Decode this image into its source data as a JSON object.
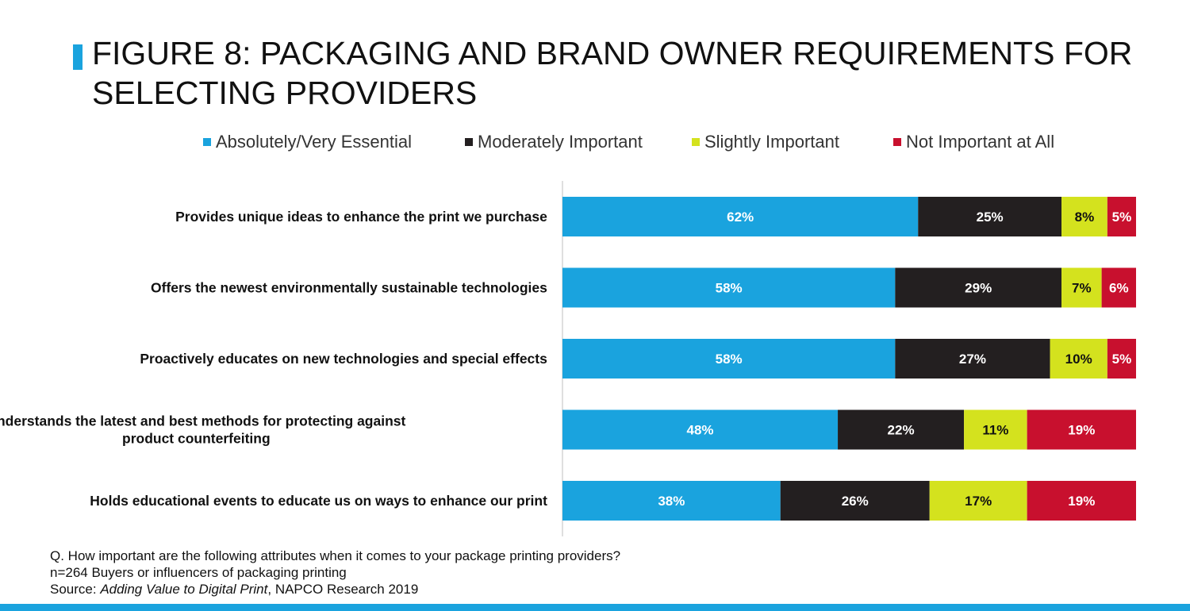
{
  "figure": {
    "title": "FIGURE 8: PACKAGING AND BRAND OWNER REQUIREMENTS FOR SELECTING PROVIDERS"
  },
  "notes": {
    "question": "Q. How important are the following attributes when it comes to your package printing providers?",
    "sample": "n=264 Buyers or influencers of packaging printing",
    "source_prefix": "Source: ",
    "source_title": "Adding Value to Digital Print",
    "source_suffix": ", NAPCO Research 2019"
  },
  "colors": {
    "accent": "#1aa3de",
    "series": [
      "#1aa3de",
      "#231f20",
      "#d4e21e",
      "#c8102e"
    ],
    "label_text": [
      "#ffffff",
      "#ffffff",
      "#111111",
      "#ffffff"
    ]
  },
  "chart_data": {
    "type": "bar",
    "orientation": "horizontal",
    "stacked": true,
    "title": "FIGURE 8: PACKAGING AND BRAND OWNER REQUIREMENTS FOR SELECTING PROVIDERS",
    "xlim": [
      0,
      100
    ],
    "unit": "%",
    "legend_position": "top",
    "grid": false,
    "categories": [
      "Provides unique ideas to enhance the print we purchase",
      "Offers the newest environmentally sustainable technologies",
      "Proactively educates on new technologies and special effects",
      "Understands the latest and best methods for protecting against product counterfeiting",
      "Holds educational events to educate us on ways to enhance our print"
    ],
    "category_lines": [
      [
        "Provides unique ideas to enhance the print we purchase"
      ],
      [
        "Offers the newest environmentally sustainable technologies"
      ],
      [
        "Proactively educates on new technologies and special effects"
      ],
      [
        "Understands the latest and best methods for protecting against",
        "product counterfeiting"
      ],
      [
        "Holds educational events to educate us on ways to enhance our print"
      ]
    ],
    "series": [
      {
        "name": "Absolutely/Very Essential",
        "values": [
          62,
          58,
          58,
          48,
          38
        ]
      },
      {
        "name": "Moderately Important",
        "values": [
          25,
          29,
          27,
          22,
          26
        ]
      },
      {
        "name": "Slightly Important",
        "values": [
          8,
          7,
          10,
          11,
          17
        ]
      },
      {
        "name": "Not Important at All",
        "values": [
          5,
          6,
          5,
          19,
          19
        ]
      }
    ]
  }
}
